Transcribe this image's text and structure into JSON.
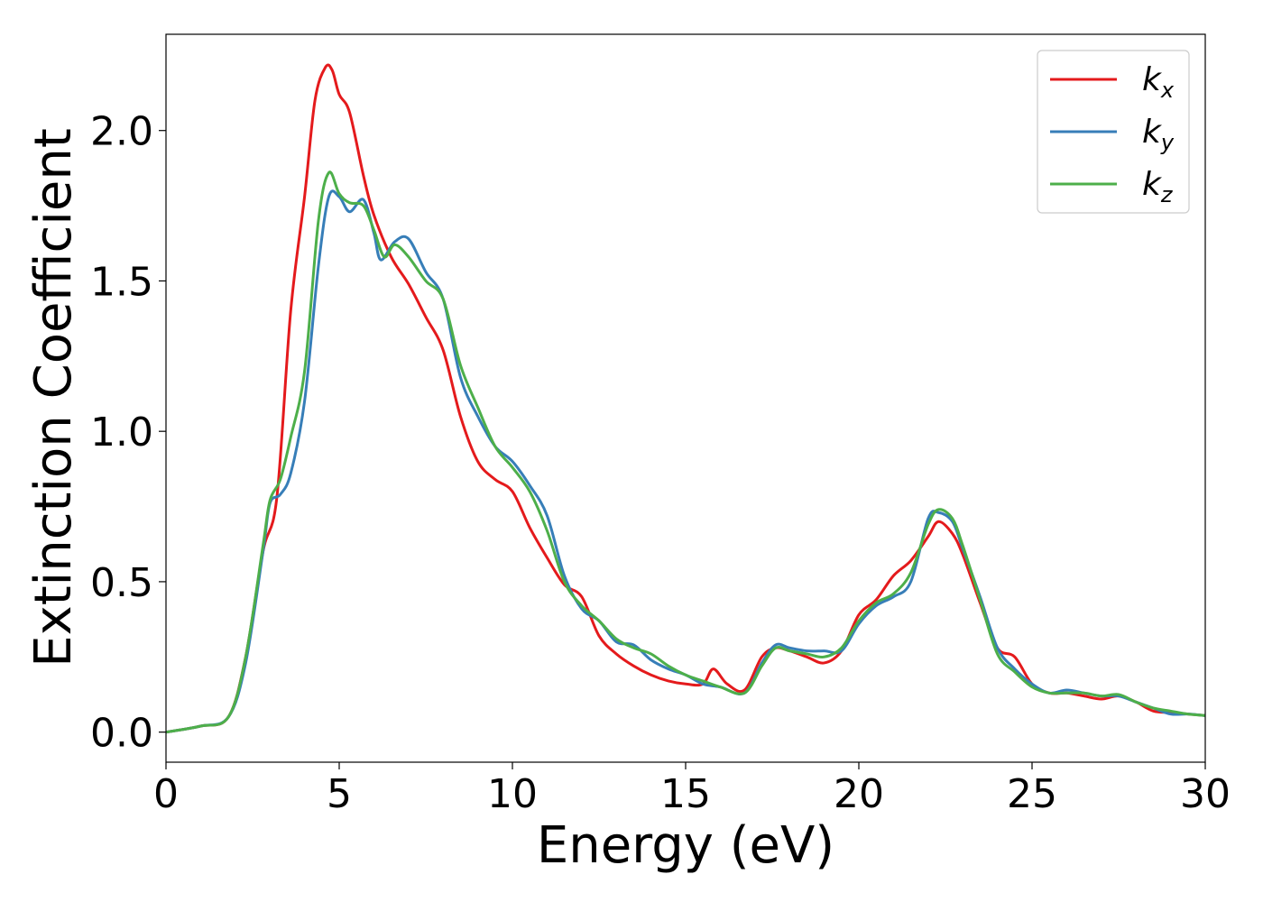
{
  "chart_data": {
    "type": "line",
    "xlabel": "Energy (eV)",
    "ylabel": "Extinction Coefficient",
    "xlim": [
      0,
      30
    ],
    "ylim": [
      -0.1,
      2.32
    ],
    "xticks": [
      0,
      5,
      10,
      15,
      20,
      25,
      30
    ],
    "xtick_labels": [
      "0",
      "5",
      "10",
      "15",
      "20",
      "25",
      "30"
    ],
    "yticks": [
      0.0,
      0.5,
      1.0,
      1.5,
      2.0
    ],
    "ytick_labels": [
      "0.0",
      "0.5",
      "1.0",
      "1.5",
      "2.0"
    ],
    "grid": false,
    "legend_position": "top-right",
    "series": [
      {
        "name": "k",
        "subscript": "x",
        "color": "#e41a1c",
        "x": [
          0,
          1,
          1.8,
          2.3,
          2.8,
          3.2,
          3.6,
          4.0,
          4.3,
          4.6,
          4.8,
          5.0,
          5.3,
          5.7,
          6.0,
          6.5,
          7.0,
          7.5,
          8.0,
          8.5,
          9.0,
          9.5,
          10.0,
          10.5,
          11.0,
          11.5,
          12.0,
          12.5,
          13.0,
          13.5,
          14.0,
          14.5,
          15.0,
          15.5,
          15.8,
          16.2,
          16.7,
          17.2,
          17.6,
          18.0,
          18.5,
          19.0,
          19.5,
          20.0,
          20.5,
          21.0,
          21.5,
          22.0,
          22.3,
          22.7,
          23.0,
          23.5,
          24.0,
          24.5,
          25.0,
          25.5,
          26.0,
          26.5,
          27.0,
          27.5,
          28.0,
          28.5,
          29.0,
          29.5,
          30.0
        ],
        "y": [
          0.0,
          0.02,
          0.05,
          0.25,
          0.6,
          0.78,
          1.4,
          1.78,
          2.1,
          2.21,
          2.2,
          2.12,
          2.06,
          1.85,
          1.72,
          1.58,
          1.49,
          1.38,
          1.27,
          1.05,
          0.9,
          0.84,
          0.8,
          0.68,
          0.58,
          0.49,
          0.45,
          0.32,
          0.26,
          0.22,
          0.19,
          0.17,
          0.16,
          0.16,
          0.21,
          0.16,
          0.14,
          0.25,
          0.28,
          0.27,
          0.25,
          0.23,
          0.27,
          0.39,
          0.44,
          0.52,
          0.57,
          0.65,
          0.7,
          0.66,
          0.59,
          0.43,
          0.28,
          0.25,
          0.16,
          0.13,
          0.13,
          0.12,
          0.11,
          0.12,
          0.1,
          0.07,
          0.065,
          0.06,
          0.055
        ]
      },
      {
        "name": "k",
        "subscript": "y",
        "color": "#377eb8",
        "x": [
          0,
          1,
          1.8,
          2.3,
          2.8,
          3.0,
          3.3,
          3.6,
          4.0,
          4.4,
          4.7,
          5.0,
          5.3,
          5.7,
          6.0,
          6.2,
          6.6,
          7.0,
          7.5,
          8.0,
          8.5,
          9.0,
          9.5,
          10.0,
          10.5,
          11.0,
          11.5,
          12.0,
          12.5,
          13.0,
          13.5,
          14.0,
          14.5,
          15.0,
          15.5,
          16.0,
          16.7,
          17.2,
          17.6,
          18.0,
          18.5,
          19.0,
          19.5,
          20.0,
          20.5,
          21.0,
          21.5,
          22.0,
          22.3,
          22.7,
          23.0,
          23.5,
          24.0,
          24.5,
          25.0,
          25.5,
          26.0,
          26.5,
          27.0,
          27.5,
          28.0,
          28.5,
          29.0,
          29.5,
          30.0
        ],
        "y": [
          0.0,
          0.02,
          0.05,
          0.23,
          0.6,
          0.76,
          0.79,
          0.86,
          1.1,
          1.55,
          1.78,
          1.78,
          1.73,
          1.77,
          1.66,
          1.57,
          1.63,
          1.64,
          1.53,
          1.44,
          1.18,
          1.05,
          0.95,
          0.9,
          0.82,
          0.72,
          0.52,
          0.41,
          0.37,
          0.3,
          0.29,
          0.24,
          0.21,
          0.19,
          0.16,
          0.15,
          0.13,
          0.23,
          0.29,
          0.28,
          0.27,
          0.27,
          0.27,
          0.36,
          0.42,
          0.45,
          0.5,
          0.71,
          0.73,
          0.7,
          0.61,
          0.45,
          0.28,
          0.21,
          0.16,
          0.13,
          0.14,
          0.13,
          0.12,
          0.12,
          0.1,
          0.08,
          0.06,
          0.06,
          0.055
        ]
      },
      {
        "name": "k",
        "subscript": "z",
        "color": "#4daf4a",
        "x": [
          0,
          1,
          1.8,
          2.3,
          2.8,
          3.0,
          3.3,
          3.6,
          4.0,
          4.4,
          4.7,
          5.0,
          5.3,
          5.7,
          6.0,
          6.3,
          6.6,
          7.0,
          7.5,
          8.0,
          8.5,
          9.0,
          9.5,
          10.0,
          10.5,
          11.0,
          11.5,
          12.0,
          12.5,
          13.0,
          13.5,
          14.0,
          14.5,
          15.0,
          15.5,
          16.0,
          16.7,
          17.2,
          17.6,
          18.0,
          18.5,
          19.0,
          19.5,
          20.0,
          20.5,
          21.0,
          21.5,
          22.0,
          22.3,
          22.7,
          23.0,
          23.5,
          24.0,
          24.5,
          25.0,
          25.5,
          26.0,
          26.5,
          27.0,
          27.5,
          28.0,
          28.5,
          29.0,
          29.5,
          30.0
        ],
        "y": [
          0.0,
          0.02,
          0.05,
          0.25,
          0.62,
          0.77,
          0.84,
          0.98,
          1.2,
          1.7,
          1.86,
          1.79,
          1.76,
          1.75,
          1.67,
          1.58,
          1.62,
          1.58,
          1.5,
          1.44,
          1.22,
          1.08,
          0.95,
          0.88,
          0.8,
          0.67,
          0.5,
          0.42,
          0.37,
          0.31,
          0.28,
          0.26,
          0.22,
          0.19,
          0.17,
          0.15,
          0.13,
          0.22,
          0.28,
          0.27,
          0.26,
          0.25,
          0.28,
          0.37,
          0.43,
          0.46,
          0.53,
          0.69,
          0.74,
          0.71,
          0.62,
          0.44,
          0.26,
          0.2,
          0.15,
          0.13,
          0.13,
          0.13,
          0.12,
          0.125,
          0.1,
          0.08,
          0.07,
          0.06,
          0.055
        ]
      }
    ]
  }
}
